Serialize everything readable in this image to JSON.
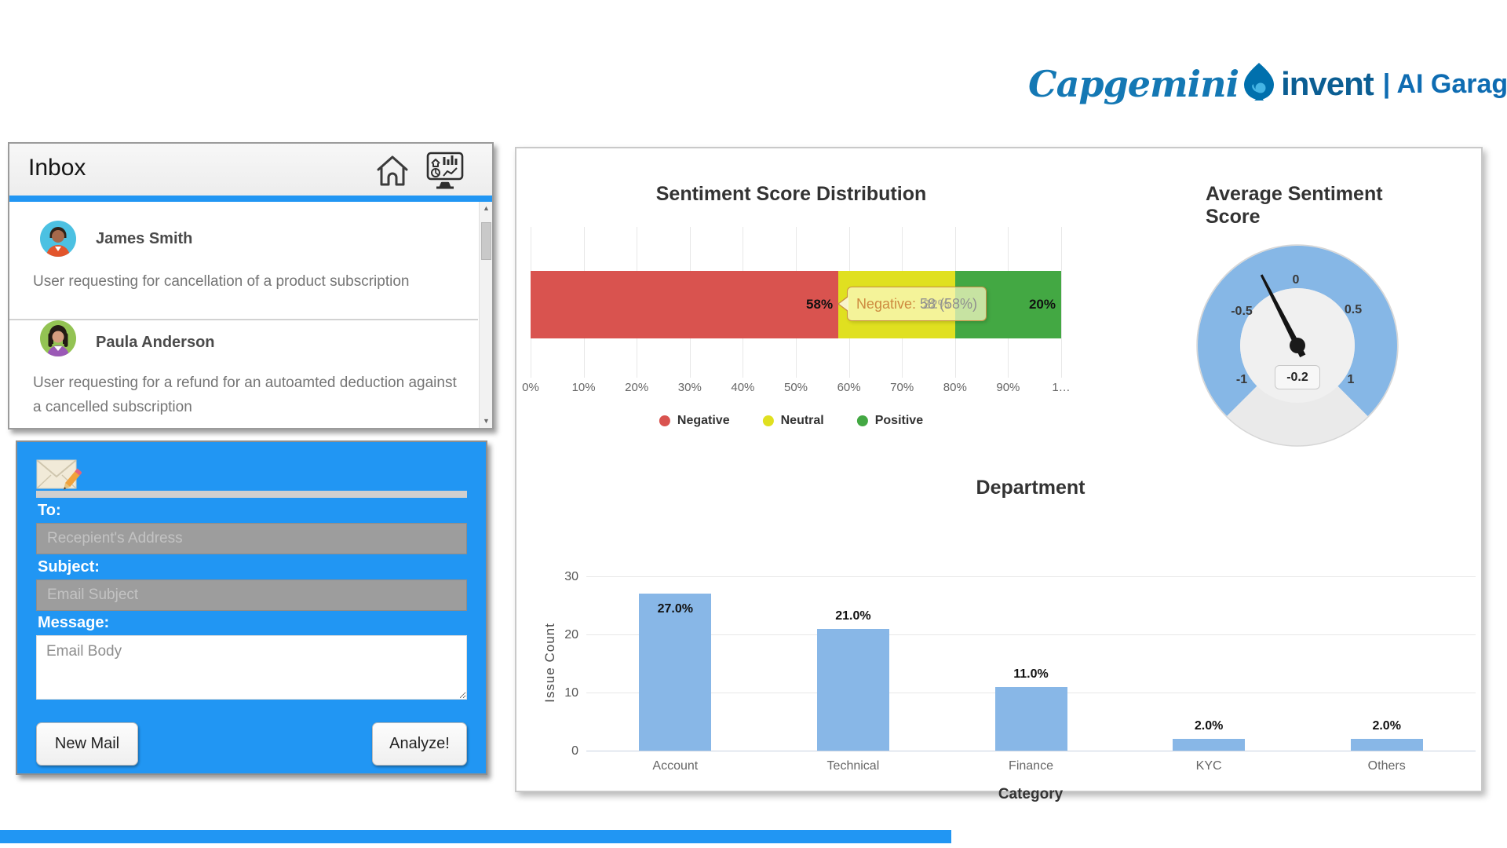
{
  "logo": {
    "brand": "Capgemini",
    "invent": "invent",
    "suffix": "| AI Garage"
  },
  "inbox": {
    "title": "Inbox",
    "emails": [
      {
        "name": "James Smith",
        "preview": "User requesting for cancellation of a product subscription"
      },
      {
        "name": "Paula Anderson",
        "preview": "User requesting for a refund for an autoamted deduction against a cancelled subscription"
      }
    ]
  },
  "compose": {
    "to_label": "To:",
    "to_placeholder": "Recepient's Address",
    "subject_label": "Subject:",
    "subject_placeholder": "Email Subject",
    "message_label": "Message:",
    "message_placeholder": "Email Body",
    "new_mail_label": "New Mail",
    "analyze_label": "Analyze!"
  },
  "chart_data": [
    {
      "type": "bar",
      "orientation": "horizontal",
      "stacked": true,
      "title": "Sentiment Score Distribution",
      "series": [
        {
          "name": "Negative",
          "value": 58,
          "color": "#d9534f"
        },
        {
          "name": "Neutral",
          "value": 22,
          "color": "#e0e020"
        },
        {
          "name": "Positive",
          "value": 20,
          "color": "#43a843"
        }
      ],
      "bar_labels": [
        "58%",
        "22%",
        "20%"
      ],
      "x_ticks": [
        "0%",
        "10%",
        "20%",
        "30%",
        "40%",
        "50%",
        "60%",
        "70%",
        "80%",
        "90%",
        "1…"
      ],
      "xlim": [
        0,
        100
      ],
      "grid": true,
      "legend_position": "bottom",
      "tooltip": {
        "label": "Negative:",
        "value": "58 (58%)"
      },
      "legend": [
        "Negative",
        "Neutral",
        "Positive"
      ]
    },
    {
      "type": "gauge",
      "title": "Average Sentiment Score",
      "min": -1,
      "max": 1,
      "value": -0.2,
      "value_label": "-0.2",
      "ticks": [
        "-1",
        "-0.5",
        "0",
        "0.5",
        "1"
      ],
      "band_color": "#86b7e6",
      "sweep_degrees": 270
    },
    {
      "type": "bar",
      "title": "Department",
      "xlabel": "Category",
      "ylabel": "Issue Count",
      "categories": [
        "Account",
        "Technical",
        "Finance",
        "KYC",
        "Others"
      ],
      "values": [
        27,
        21,
        11,
        2,
        2
      ],
      "labels": [
        "27.0%",
        "21.0%",
        "11.0%",
        "2.0%",
        "2.0%"
      ],
      "y_ticks": [
        0,
        10,
        20,
        30
      ],
      "ylim": [
        0,
        30
      ],
      "bar_color": "#88b7e7",
      "grid": true
    }
  ]
}
